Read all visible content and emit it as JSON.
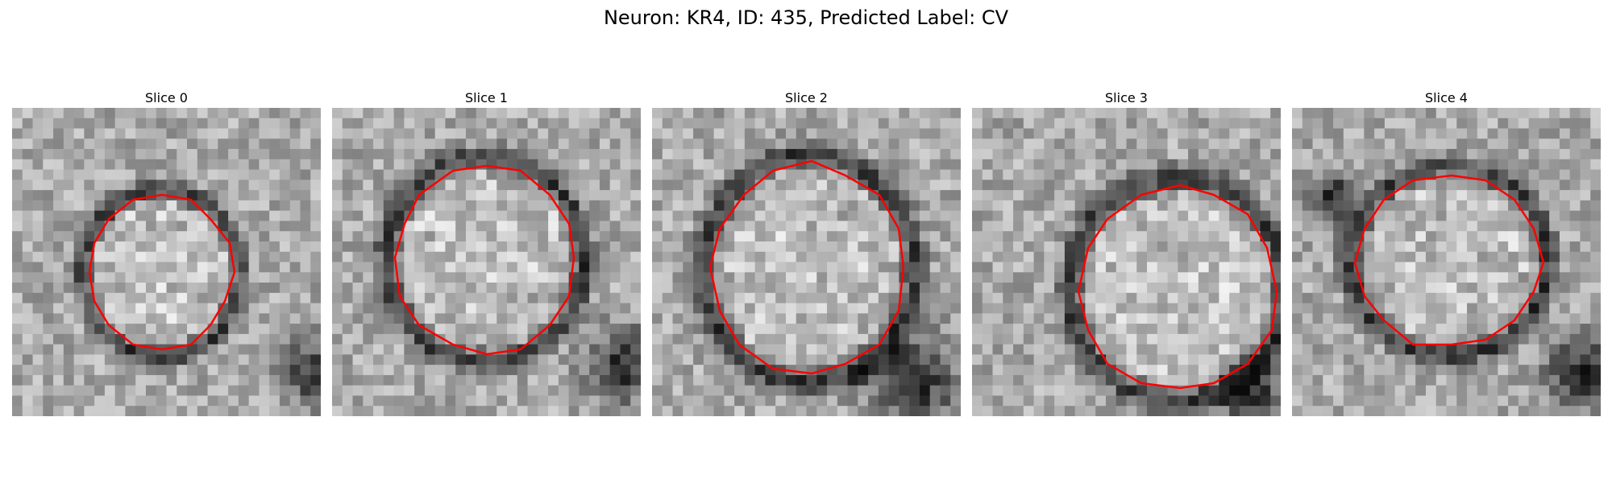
{
  "figure": {
    "title": "Neuron: KR4, ID: 435, Predicted Label: CV"
  },
  "panels": [
    {
      "title": "Slice 0"
    },
    {
      "title": "Slice 1"
    },
    {
      "title": "Slice 2"
    },
    {
      "title": "Slice 3"
    },
    {
      "title": "Slice 4"
    }
  ],
  "colors": {
    "contour": "#ff0000",
    "background": "#ffffff"
  }
}
